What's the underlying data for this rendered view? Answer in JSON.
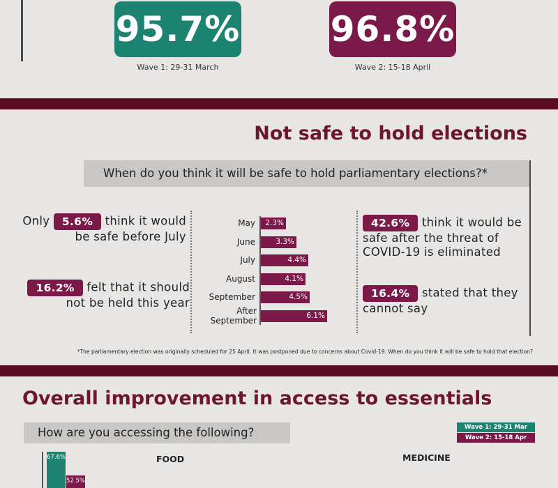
{
  "top": {
    "wave1_value": "95.7%",
    "wave2_value": "96.8%",
    "wave1_caption": "Wave 1: 29-31 March",
    "wave2_caption": "Wave 2: 15-18 April",
    "colors": {
      "wave1": "#1c8371",
      "wave2": "#7b1a48",
      "band": "#5b0b23",
      "title": "#6e1530"
    }
  },
  "elections": {
    "title": "Not safe to hold elections",
    "question": "When do you think it will be safe to hold parliamentary elections?*",
    "stmt1": {
      "before": "Only",
      "value": "5.6%",
      "after": "think it would be safe before July"
    },
    "stmt2": {
      "value": "16.2%",
      "after": "felt that it should not be held this year"
    },
    "stmt3": {
      "value": "42.6%",
      "after": "think it would be safe after the threat of COVID-19 is eliminated"
    },
    "stmt4": {
      "value": "16.4%",
      "after": "stated that they cannot say"
    },
    "footnote": "*The parliamentary election was originally scheduled for 25 April. It was postponed due to concerns about Covid-19. When do you think it will be safe to hold that election?"
  },
  "chart_data": {
    "type": "bar",
    "orientation": "horizontal",
    "categories": [
      "May",
      "June",
      "July",
      "August",
      "September",
      "After September"
    ],
    "values": [
      2.3,
      3.3,
      4.4,
      4.1,
      4.5,
      6.1
    ],
    "labels": [
      "2.3%",
      "3.3%",
      "4.4%",
      "4.1%",
      "4.5%",
      "6.1%"
    ],
    "color": "#7b1a48"
  },
  "essentials": {
    "title": "Overall improvement in access to essentials",
    "question": "How are you accessing the following?",
    "legend_w1": "Wave 1: 29-31 Mar",
    "legend_w2": "Wave 2: 15-18 Apr",
    "cat_food": "FOOD",
    "cat_medicine": "MEDICINE",
    "food_w1": "67.6%",
    "food_w2": "52.5%"
  }
}
